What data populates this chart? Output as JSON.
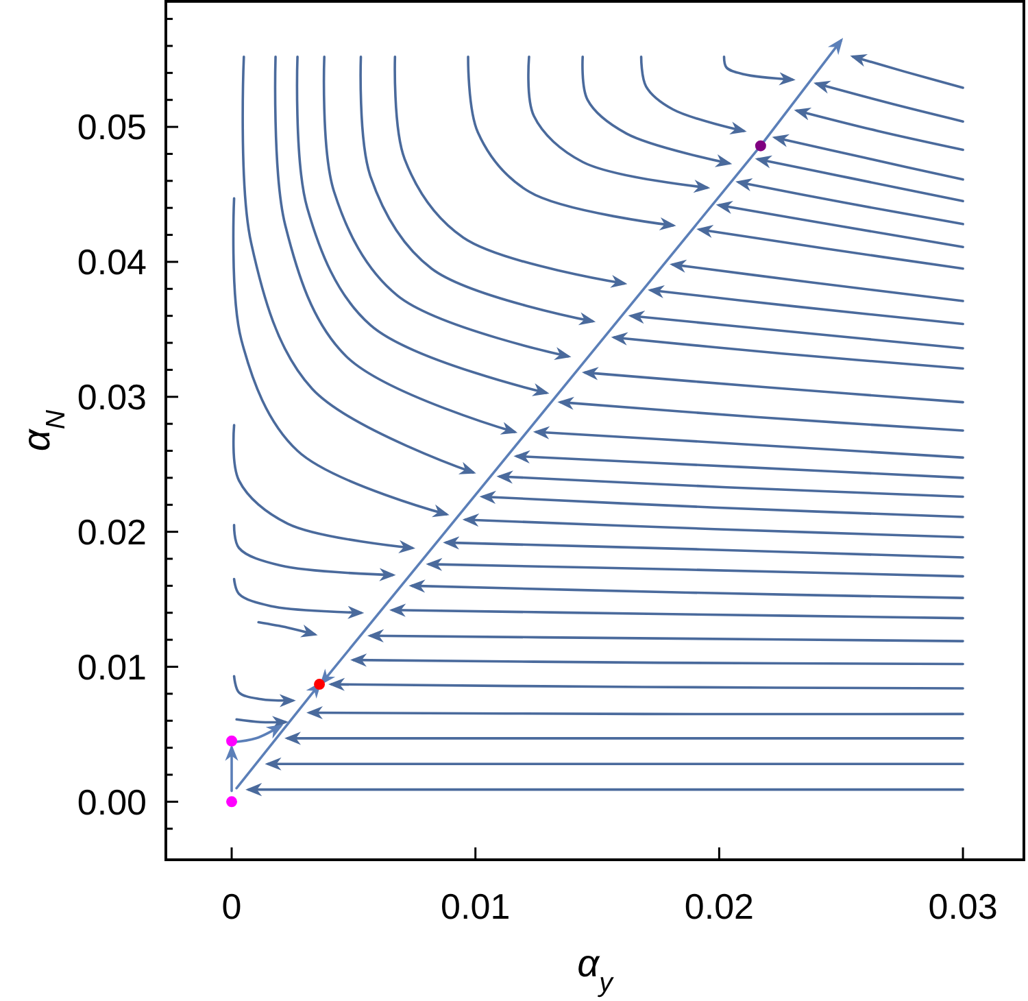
{
  "chart_data": {
    "type": "line",
    "xlabel": "α$_{y}$",
    "ylabel": "α$_{N}$",
    "xlim": [
      -0.0027,
      0.0325
    ],
    "ylim": [
      -0.0043,
      0.0593
    ],
    "xticks": [
      {
        "value": 0,
        "label": "0"
      },
      0.01,
      0.02,
      0.03
    ],
    "yticks": [
      {
        "value": -0.002,
        "label": null
      },
      {
        "value": 0,
        "label": "0.00"
      },
      {
        "value": 0.002,
        "label": null
      },
      {
        "value": 0.004,
        "label": null
      },
      {
        "value": 0.006,
        "label": null
      },
      {
        "value": 0.008,
        "label": null
      },
      {
        "value": 0.01,
        "label": "0.01"
      },
      {
        "value": 0.012,
        "label": null
      },
      {
        "value": 0.014,
        "label": null
      },
      {
        "value": 0.016,
        "label": null
      },
      {
        "value": 0.018,
        "label": null
      },
      {
        "value": 0.02,
        "label": "0.02"
      },
      {
        "value": 0.022,
        "label": null
      },
      {
        "value": 0.024,
        "label": null
      },
      {
        "value": 0.026,
        "label": null
      },
      {
        "value": 0.028,
        "label": null
      },
      {
        "value": 0.03,
        "label": "0.03"
      },
      {
        "value": 0.032,
        "label": null
      },
      {
        "value": 0.034,
        "label": null
      },
      {
        "value": 0.036,
        "label": null
      },
      {
        "value": 0.038,
        "label": null
      },
      {
        "value": 0.04,
        "label": "0.04"
      },
      {
        "value": 0.042,
        "label": null
      },
      {
        "value": 0.044,
        "label": null
      },
      {
        "value": 0.046,
        "label": null
      },
      {
        "value": 0.048,
        "label": null
      },
      {
        "value": 0.05,
        "label": "0.05"
      },
      {
        "value": 0.052,
        "label": null
      },
      {
        "value": 0.054,
        "label": null
      },
      {
        "value": 0.056,
        "label": null
      },
      {
        "value": 0.058,
        "label": null
      }
    ],
    "series": [
      {
        "color": "#4a6a9c",
        "x": [
          0.03,
          0.0276,
          0.0255
        ],
        "values": [
          0.0529,
          0.0541,
          0.0552
        ]
      },
      {
        "color": "#4a6a9c",
        "x": [
          0.03,
          0.0271,
          0.024
        ],
        "values": [
          0.0504,
          0.0517,
          0.0532
        ]
      },
      {
        "color": "#4a6a9c",
        "x": [
          0.03,
          0.0265,
          0.0232
        ],
        "values": [
          0.0483,
          0.0497,
          0.0512
        ]
      },
      {
        "color": "#4a6a9c",
        "x": [
          0.03,
          0.026,
          0.0223
        ],
        "values": [
          0.0461,
          0.0477,
          0.0492
        ]
      },
      {
        "color": "#4a6a9c",
        "x": [
          0.03,
          0.0254,
          0.0216
        ],
        "values": [
          0.0445,
          0.0462,
          0.0476
        ]
      },
      {
        "color": "#4a6a9c",
        "x": [
          0.03,
          0.0251,
          0.0208
        ],
        "values": [
          0.0428,
          0.0444,
          0.0459
        ]
      },
      {
        "color": "#4a6a9c",
        "x": [
          0.03,
          0.0248,
          0.02
        ],
        "values": [
          0.0411,
          0.0427,
          0.0442
        ]
      },
      {
        "color": "#4a6a9c",
        "x": [
          0.03,
          0.0243,
          0.0192
        ],
        "values": [
          0.0395,
          0.041,
          0.0424
        ]
      },
      {
        "color": "#4a6a9c",
        "x": [
          0.03,
          0.0237,
          0.0181
        ],
        "values": [
          0.0371,
          0.0385,
          0.0398
        ]
      },
      {
        "color": "#4a6a9c",
        "x": [
          0.03,
          0.0231,
          0.0172
        ],
        "values": [
          0.0354,
          0.0367,
          0.0379
        ]
      },
      {
        "color": "#4a6a9c",
        "x": [
          0.03,
          0.0231,
          0.0164
        ],
        "values": [
          0.0336,
          0.0348,
          0.036
        ]
      },
      {
        "color": "#4a6a9c",
        "x": [
          0.03,
          0.0226,
          0.0157
        ],
        "values": [
          0.0321,
          0.0332,
          0.0344
        ]
      },
      {
        "color": "#4a6a9c",
        "x": [
          0.03,
          0.022,
          0.0145
        ],
        "values": [
          0.0296,
          0.0307,
          0.0318
        ]
      },
      {
        "color": "#4a6a9c",
        "x": [
          0.03,
          0.0215,
          0.0135
        ],
        "values": [
          0.0275,
          0.0285,
          0.0296
        ]
      },
      {
        "color": "#4a6a9c",
        "x": [
          0.03,
          0.0209,
          0.0125
        ],
        "values": [
          0.0255,
          0.0265,
          0.0274
        ]
      },
      {
        "color": "#4a6a9c",
        "x": [
          0.03,
          0.0209,
          0.0117
        ],
        "values": [
          0.024,
          0.0248,
          0.0256
        ]
      },
      {
        "color": "#4a6a9c",
        "x": [
          0.03,
          0.0203,
          0.011
        ],
        "values": [
          0.0226,
          0.0233,
          0.0241
        ]
      },
      {
        "color": "#4a6a9c",
        "x": [
          0.03,
          0.0198,
          0.0103
        ],
        "values": [
          0.0211,
          0.0218,
          0.0226
        ]
      },
      {
        "color": "#4a6a9c",
        "x": [
          0.03,
          0.0198,
          0.0096
        ],
        "values": [
          0.0196,
          0.0202,
          0.0209
        ]
      },
      {
        "color": "#4a6a9c",
        "x": [
          0.03,
          0.0192,
          0.0088
        ],
        "values": [
          0.0181,
          0.0187,
          0.0192
        ]
      },
      {
        "color": "#4a6a9c",
        "x": [
          0.03,
          0.0186,
          0.0081
        ],
        "values": [
          0.0167,
          0.0172,
          0.0176
        ]
      },
      {
        "color": "#4a6a9c",
        "x": [
          0.03,
          0.0186,
          0.0074
        ],
        "values": [
          0.0151,
          0.0155,
          0.016
        ]
      },
      {
        "color": "#4a6a9c",
        "x": [
          0.03,
          0.0181,
          0.0066
        ],
        "values": [
          0.0136,
          0.0139,
          0.0142
        ]
      },
      {
        "color": "#4a6a9c",
        "x": [
          0.03,
          0.0175,
          0.0057
        ],
        "values": [
          0.0119,
          0.0121,
          0.0123
        ]
      },
      {
        "color": "#4a6a9c",
        "x": [
          0.03,
          0.0175,
          0.005
        ],
        "values": [
          0.0102,
          0.0103,
          0.0105
        ]
      },
      {
        "color": "#4a6a9c",
        "x": [
          0.03,
          0.0169,
          0.0041
        ],
        "values": [
          0.0084,
          0.0085,
          0.0087
        ]
      },
      {
        "color": "#4a6a9c",
        "x": [
          0.03,
          0.0169,
          0.0032
        ],
        "values": [
          0.0065,
          0.0065,
          0.0066
        ]
      },
      {
        "color": "#4a6a9c",
        "x": [
          0.03,
          0.0023
        ],
        "values": [
          0.0047,
          0.0047
        ]
      },
      {
        "color": "#4a6a9c",
        "x": [
          0.03,
          0.0015
        ],
        "values": [
          0.0028,
          0.0028
        ]
      },
      {
        "color": "#4a6a9c",
        "x": [
          0.03,
          0.0007
        ],
        "values": [
          0.0009,
          0.0009
        ]
      },
      {
        "color": "#4a6a9c",
        "x": [
          0.0202,
          0.0203,
          0.021,
          0.023
        ],
        "values": [
          0.0552,
          0.0544,
          0.0539,
          0.0535
        ]
      },
      {
        "color": "#4a6a9c",
        "x": [
          0.0168,
          0.017,
          0.0181,
          0.021
        ],
        "values": [
          0.0552,
          0.053,
          0.0513,
          0.0497
        ]
      },
      {
        "color": "#4a6a9c",
        "x": [
          0.0144,
          0.0146,
          0.0162,
          0.0204
        ],
        "values": [
          0.0552,
          0.052,
          0.0495,
          0.0473
        ]
      },
      {
        "color": "#4a6a9c",
        "x": [
          0.0122,
          0.0124,
          0.0144,
          0.0195
        ],
        "values": [
          0.0552,
          0.0508,
          0.0474,
          0.0455
        ]
      },
      {
        "color": "#4a6a9c",
        "x": [
          0.0097,
          0.0101,
          0.0122,
          0.0181
        ],
        "values": [
          0.0552,
          0.0496,
          0.0452,
          0.0427
        ]
      },
      {
        "color": "#4a6a9c",
        "x": [
          0.0067,
          0.0071,
          0.0095,
          0.0161
        ],
        "values": [
          0.0552,
          0.0476,
          0.0418,
          0.0384
        ]
      },
      {
        "color": "#4a6a9c",
        "x": [
          0.0053,
          0.0057,
          0.0082,
          0.0148
        ],
        "values": [
          0.0552,
          0.0463,
          0.0395,
          0.0356
        ]
      },
      {
        "color": "#4a6a9c",
        "x": [
          0.0038,
          0.0042,
          0.0068,
          0.0138
        ],
        "values": [
          0.0552,
          0.0452,
          0.0375,
          0.033
        ]
      },
      {
        "color": "#4a6a9c",
        "x": [
          0.0027,
          0.0031,
          0.0057,
          0.0129
        ],
        "values": [
          0.0552,
          0.044,
          0.0353,
          0.0303
        ]
      },
      {
        "color": "#4a6a9c",
        "x": [
          0.0018,
          0.0022,
          0.0047,
          0.0116
        ],
        "values": [
          0.0552,
          0.0427,
          0.033,
          0.0274
        ]
      },
      {
        "color": "#4a6a9c",
        "x": [
          0.0005,
          0.0008,
          0.0033,
          0.0099
        ],
        "values": [
          0.0552,
          0.0414,
          0.0306,
          0.0244
        ]
      },
      {
        "color": "#4a6a9c",
        "x": [
          0.0001,
          0.0004,
          0.0027,
          0.0088
        ],
        "values": [
          0.0447,
          0.0342,
          0.026,
          0.0213
        ]
      },
      {
        "color": "#4a6a9c",
        "x": [
          0.0001,
          0.0003,
          0.0023,
          0.0074
        ],
        "values": [
          0.0279,
          0.0238,
          0.0206,
          0.0188
        ]
      },
      {
        "color": "#4a6a9c",
        "x": [
          0.0001,
          0.0003,
          0.002,
          0.0066
        ],
        "values": [
          0.0205,
          0.0188,
          0.0175,
          0.0168
        ]
      },
      {
        "color": "#4a6a9c",
        "x": [
          0.0001,
          0.0003,
          0.0016,
          0.0053
        ],
        "values": [
          0.0165,
          0.0154,
          0.0145,
          0.014
        ]
      },
      {
        "color": "#4a6a9c",
        "x": [
          0.0011,
          0.0023,
          0.0034
        ],
        "values": [
          0.0133,
          0.0129,
          0.0124
        ]
      },
      {
        "color": "#4a6a9c",
        "x": [
          0.0001,
          0.0003,
          0.0012,
          0.0025
        ],
        "values": [
          0.0093,
          0.0081,
          0.0076,
          0.0075
        ]
      },
      {
        "color": "#4a6a9c",
        "x": [
          0.0002,
          0.0012,
          0.0022
        ],
        "values": [
          0.0061,
          0.0059,
          0.0059
        ]
      },
      {
        "color": "#5b7fb8",
        "x": [
          0.0002,
          0.0036
        ],
        "values": [
          0.001,
          0.0087
        ]
      },
      {
        "color": "#5b7fb8",
        "x": [
          0.0217,
          0.0037
        ],
        "values": [
          0.0486,
          0.0088
        ]
      },
      {
        "color": "#5b7fb8",
        "x": [
          0.0217,
          0.025
        ],
        "values": [
          0.0486,
          0.0564
        ]
      },
      {
        "color": "#5b7fb8",
        "x": [
          0,
          0
        ],
        "values": [
          0.0008,
          0.004
        ]
      },
      {
        "color": "#5b7fb8",
        "x": [
          0,
          0.001,
          0.002
        ],
        "values": [
          0.0044,
          0.0047,
          0.0056
        ]
      },
      {
        "type": "scatter",
        "color": "#ff00ff",
        "x": [
          0,
          0
        ],
        "values": [
          0,
          0.0045
        ]
      },
      {
        "type": "scatter",
        "color": "#ff0000",
        "x": [
          0.0036
        ],
        "values": [
          0.0087
        ]
      },
      {
        "type": "scatter",
        "color": "#800080",
        "x": [
          0.0217
        ],
        "values": [
          0.0486
        ]
      }
    ]
  }
}
